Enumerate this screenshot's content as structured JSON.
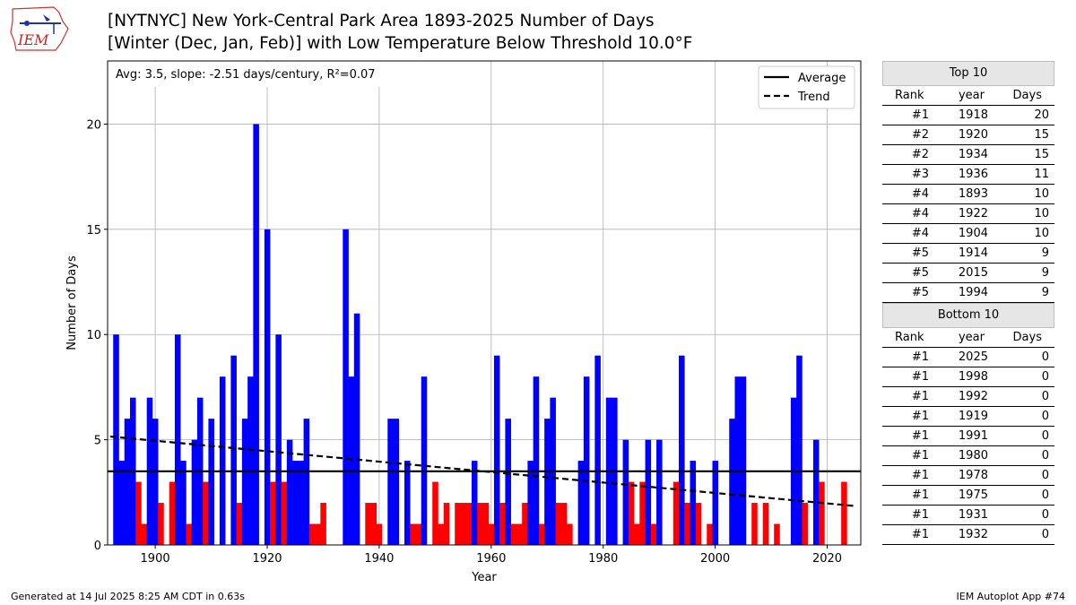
{
  "header": {
    "title_line1": "[NYTNYC] New York-Central Park Area 1893-2025 Number of Days",
    "title_line2": "[Winter (Dec, Jan, Feb)] with Low Temperature Below Threshold 10.0°F"
  },
  "logo": {
    "text": "IEM"
  },
  "footer": {
    "left": "Generated at 14 Jul 2025 8:25 AM CDT in 0.63s",
    "right": "IEM Autoplot App #74"
  },
  "colors": {
    "above": "#0000ff",
    "below": "#ff0000",
    "average": "#000000",
    "trend": "#000000"
  },
  "chart_data": {
    "type": "bar",
    "xlabel": "Year",
    "ylabel": "Number of Days",
    "xlim": [
      1891.5,
      2026.0
    ],
    "ylim": [
      0,
      23
    ],
    "xticks": [
      1900,
      1920,
      1940,
      1960,
      1980,
      2000,
      2020
    ],
    "yticks": [
      0,
      5,
      10,
      15,
      20
    ],
    "grid": true,
    "stats_label": "Avg: 3.5, slope: -2.51 days/century, R²=0.07",
    "average": 3.5,
    "trend": {
      "start": [
        1892,
        5.15
      ],
      "end": [
        2025,
        1.85
      ]
    },
    "legend": {
      "position": "top-right",
      "average_label": "Average",
      "trend_label": "Trend"
    },
    "x": [
      1893,
      1894,
      1895,
      1896,
      1897,
      1898,
      1899,
      1900,
      1901,
      1902,
      1903,
      1904,
      1905,
      1906,
      1907,
      1908,
      1909,
      1910,
      1911,
      1912,
      1913,
      1914,
      1915,
      1916,
      1917,
      1918,
      1919,
      1920,
      1921,
      1922,
      1923,
      1924,
      1925,
      1926,
      1927,
      1928,
      1929,
      1930,
      1931,
      1932,
      1933,
      1934,
      1935,
      1936,
      1937,
      1938,
      1939,
      1940,
      1941,
      1942,
      1943,
      1944,
      1945,
      1946,
      1947,
      1948,
      1949,
      1950,
      1951,
      1952,
      1953,
      1954,
      1955,
      1956,
      1957,
      1958,
      1959,
      1960,
      1961,
      1962,
      1963,
      1964,
      1965,
      1966,
      1967,
      1968,
      1969,
      1970,
      1971,
      1972,
      1973,
      1974,
      1975,
      1976,
      1977,
      1978,
      1979,
      1980,
      1981,
      1982,
      1983,
      1984,
      1985,
      1986,
      1987,
      1988,
      1989,
      1990,
      1991,
      1992,
      1993,
      1994,
      1995,
      1996,
      1997,
      1998,
      1999,
      2000,
      2001,
      2002,
      2003,
      2004,
      2005,
      2006,
      2007,
      2008,
      2009,
      2010,
      2011,
      2012,
      2013,
      2014,
      2015,
      2016,
      2017,
      2018,
      2019,
      2020,
      2021,
      2022,
      2023,
      2024,
      2025
    ],
    "values": [
      10,
      4,
      6,
      7,
      3,
      1,
      7,
      6,
      2,
      0,
      3,
      10,
      4,
      1,
      5,
      7,
      3,
      6,
      0,
      8,
      0,
      9,
      2,
      6,
      8,
      20,
      0,
      15,
      3,
      10,
      3,
      5,
      4,
      4,
      6,
      1,
      1,
      2,
      0,
      0,
      0,
      15,
      8,
      11,
      0,
      2,
      2,
      1,
      0,
      6,
      6,
      0,
      4,
      1,
      1,
      8,
      0,
      3,
      1,
      2,
      0,
      2,
      2,
      2,
      4,
      2,
      2,
      1,
      9,
      2,
      6,
      1,
      1,
      2,
      4,
      8,
      1,
      6,
      7,
      2,
      2,
      1,
      0,
      4,
      8,
      0,
      9,
      0,
      7,
      7,
      0,
      5,
      3,
      1,
      3,
      5,
      1,
      5,
      0,
      0,
      3,
      9,
      2,
      4,
      2,
      0,
      1,
      4,
      0,
      0,
      6,
      8,
      8,
      0,
      2,
      0,
      2,
      0,
      1,
      0,
      0,
      7,
      9,
      2,
      0,
      5,
      3,
      0,
      0,
      0,
      3,
      0,
      0
    ]
  },
  "top_table": {
    "title": "Top 10",
    "headers": [
      "Rank",
      "year",
      "Days"
    ],
    "rows": [
      [
        "#1",
        "1918",
        "20"
      ],
      [
        "#2",
        "1920",
        "15"
      ],
      [
        "#2",
        "1934",
        "15"
      ],
      [
        "#3",
        "1936",
        "11"
      ],
      [
        "#4",
        "1893",
        "10"
      ],
      [
        "#4",
        "1922",
        "10"
      ],
      [
        "#4",
        "1904",
        "10"
      ],
      [
        "#5",
        "1914",
        "9"
      ],
      [
        "#5",
        "2015",
        "9"
      ],
      [
        "#5",
        "1994",
        "9"
      ]
    ]
  },
  "bottom_table": {
    "title": "Bottom 10",
    "headers": [
      "Rank",
      "year",
      "Days"
    ],
    "rows": [
      [
        "#1",
        "2025",
        "0"
      ],
      [
        "#1",
        "1998",
        "0"
      ],
      [
        "#1",
        "1992",
        "0"
      ],
      [
        "#1",
        "1919",
        "0"
      ],
      [
        "#1",
        "1991",
        "0"
      ],
      [
        "#1",
        "1980",
        "0"
      ],
      [
        "#1",
        "1978",
        "0"
      ],
      [
        "#1",
        "1975",
        "0"
      ],
      [
        "#1",
        "1931",
        "0"
      ],
      [
        "#1",
        "1932",
        "0"
      ]
    ]
  }
}
